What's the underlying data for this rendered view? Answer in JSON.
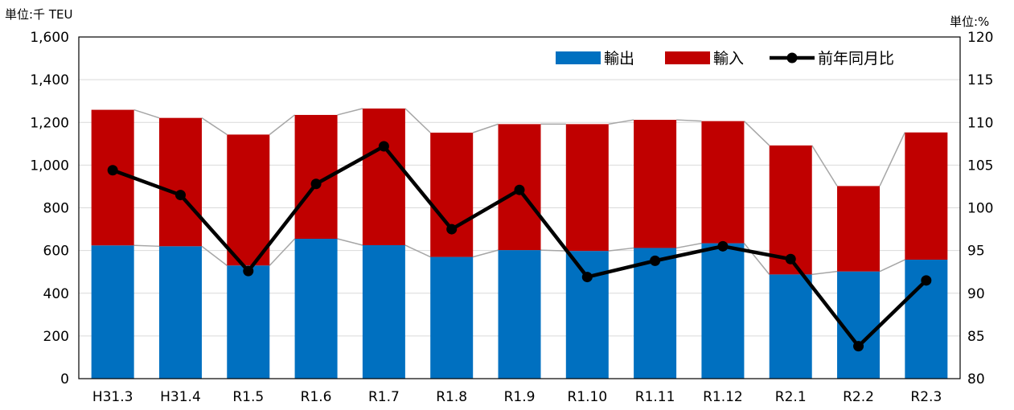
{
  "chart_data": {
    "type": "bar",
    "stacked": true,
    "title": "",
    "left_unit_label": "単位:千 TEU",
    "right_unit_label": "単位:%",
    "categories": [
      "H31.3",
      "H31.4",
      "R1.5",
      "R1.6",
      "R1.7",
      "R1.8",
      "R1.9",
      "R1.10",
      "R1.11",
      "R1.12",
      "R2.1",
      "R2.2",
      "R2.3"
    ],
    "series": [
      {
        "name": "輸出",
        "kind": "bar",
        "axis": "left",
        "color": "#0070C0",
        "values": [
          624,
          620,
          530,
          655,
          625,
          570,
          602,
          598,
          612,
          634,
          488,
          502,
          557
        ]
      },
      {
        "name": "輸入",
        "kind": "bar",
        "axis": "left",
        "color": "#C00000",
        "values": [
          635,
          601,
          613,
          580,
          640,
          582,
          590,
          594,
          600,
          572,
          604,
          400,
          596
        ]
      },
      {
        "name": "前年同月比",
        "kind": "line",
        "axis": "right",
        "color": "#000000",
        "values": [
          104.4,
          101.5,
          92.6,
          102.8,
          107.2,
          97.5,
          102.1,
          91.9,
          93.8,
          95.5,
          94.0,
          83.8,
          91.5
        ]
      }
    ],
    "left_axis": {
      "min": 0,
      "max": 1600,
      "step": 200,
      "tick_labels": [
        "0",
        "200",
        "400",
        "600",
        "800",
        "1,000",
        "1,200",
        "1,400",
        "1,600"
      ]
    },
    "right_axis": {
      "min": 80,
      "max": 120,
      "step": 5,
      "tick_labels": [
        "80",
        "85",
        "90",
        "95",
        "100",
        "105",
        "110",
        "115",
        "120"
      ]
    },
    "grid": true,
    "legend_position": "top-right",
    "series_lines": true
  }
}
